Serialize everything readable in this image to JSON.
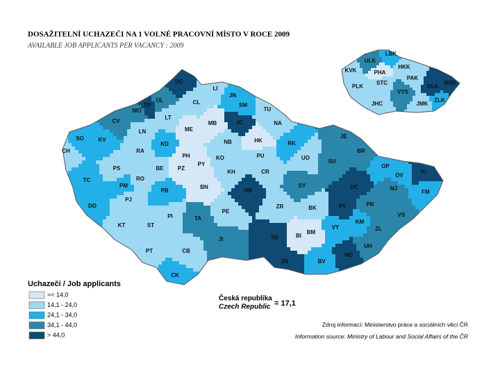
{
  "header": {
    "title": "DOSAŽITELNÍ UCHAZEČI NA 1 VOLNÉ PRACOVNÍ MÍSTO V ROCE 2009",
    "subtitle": "AVAILABLE JOB APPLICANTS PER VACANCY : 2009"
  },
  "legend": {
    "title": "Uchazeči / Job applicants",
    "items": [
      {
        "label": "=< 14,0",
        "color": "#d6e8f8"
      },
      {
        "label": "14,1 - 24,0",
        "color": "#9ed9f3"
      },
      {
        "label": "24,1 - 34,0",
        "color": "#23b0e8"
      },
      {
        "label": "34,1 - 44,0",
        "color": "#2a86ab"
      },
      {
        "label": "> 44,0",
        "color": "#0e4a74"
      }
    ]
  },
  "country": {
    "name_cz": "Česká republika",
    "name_en": "Czech Republic",
    "value_label": "= 17,1"
  },
  "source": {
    "cz": "Zdroj informací: Ministerstvo práce a sociálních věcí ČR",
    "en": "Information source: Ministry of Labour and Social Affairs of the ČR"
  },
  "districts": [
    {
      "label": "DC",
      "class": 4
    },
    {
      "label": "LI",
      "class": 1
    },
    {
      "label": "JN",
      "class": 2
    },
    {
      "label": "CL",
      "class": 1
    },
    {
      "label": "SM",
      "class": 2
    },
    {
      "label": "TU",
      "class": 1
    },
    {
      "label": "UL",
      "class": 3
    },
    {
      "label": "LT",
      "class": 1
    },
    {
      "label": "TP",
      "class": 4
    },
    {
      "label": "MO",
      "class": 3
    },
    {
      "label": "CV",
      "class": 3
    },
    {
      "label": "LN",
      "class": 1
    },
    {
      "label": "MB",
      "class": 0
    },
    {
      "label": "JC",
      "class": 4
    },
    {
      "label": "NA",
      "class": 1
    },
    {
      "label": "ME",
      "class": 0
    },
    {
      "label": "SO",
      "class": 2
    },
    {
      "label": "KV",
      "class": 2
    },
    {
      "label": "CH",
      "class": 1
    },
    {
      "label": "KD",
      "class": 2
    },
    {
      "label": "NB",
      "class": 1
    },
    {
      "label": "HK",
      "class": 0
    },
    {
      "label": "RK",
      "class": 2
    },
    {
      "label": "JE",
      "class": 3
    },
    {
      "label": "RA",
      "class": 1
    },
    {
      "label": "PH",
      "class": 0
    },
    {
      "label": "KO",
      "class": 1
    },
    {
      "label": "PU",
      "class": 1
    },
    {
      "label": "UO",
      "class": 1
    },
    {
      "label": "BR",
      "class": 3
    },
    {
      "label": "PZ",
      "class": 0
    },
    {
      "label": "PY",
      "class": 0
    },
    {
      "label": "BE",
      "class": 1
    },
    {
      "label": "PS",
      "class": 1
    },
    {
      "label": "KH",
      "class": 1
    },
    {
      "label": "CR",
      "class": 1
    },
    {
      "label": "SU",
      "class": 3
    },
    {
      "label": "OP",
      "class": 2
    },
    {
      "label": "OV",
      "class": 2
    },
    {
      "label": "KI",
      "class": 4
    },
    {
      "label": "TC",
      "class": 2
    },
    {
      "label": "PM",
      "class": 2
    },
    {
      "label": "RO",
      "class": 1
    },
    {
      "label": "PJ",
      "class": 1
    },
    {
      "label": "BN",
      "class": 0
    },
    {
      "label": "HB",
      "class": 4
    },
    {
      "label": "SY",
      "class": 3
    },
    {
      "label": "OC",
      "class": 4
    },
    {
      "label": "NJ",
      "class": 3
    },
    {
      "label": "FM",
      "class": 2
    },
    {
      "label": "PB",
      "class": 2
    },
    {
      "label": "DO",
      "class": 2
    },
    {
      "label": "ZR",
      "class": 1
    },
    {
      "label": "BK",
      "class": 1
    },
    {
      "label": "PV",
      "class": 4
    },
    {
      "label": "PR",
      "class": 3
    },
    {
      "label": "PE",
      "class": 1
    },
    {
      "label": "PI",
      "class": 1
    },
    {
      "label": "TA",
      "class": 3
    },
    {
      "label": "VS",
      "class": 3
    },
    {
      "label": "KM",
      "class": 2
    },
    {
      "label": "KT",
      "class": 1
    },
    {
      "label": "ST",
      "class": 1
    },
    {
      "label": "VY",
      "class": 2
    },
    {
      "label": "ZL",
      "class": 3
    },
    {
      "label": "BM",
      "class": 0
    },
    {
      "label": "JI",
      "class": 3
    },
    {
      "label": "TR",
      "class": 4
    },
    {
      "label": "BI",
      "class": 0
    },
    {
      "label": "PT",
      "class": 1
    },
    {
      "label": "CB",
      "class": 1
    },
    {
      "label": "UH",
      "class": 3
    },
    {
      "label": "HO",
      "class": 4
    },
    {
      "label": "ZN",
      "class": 4
    },
    {
      "label": "BV",
      "class": 2
    },
    {
      "label": "CK",
      "class": 2
    }
  ],
  "regions": [
    {
      "label": "LBK",
      "class": 2
    },
    {
      "label": "ULK",
      "class": 3
    },
    {
      "label": "HKK",
      "class": 1
    },
    {
      "label": "KVK",
      "class": 1
    },
    {
      "label": "PHA",
      "class": 0
    },
    {
      "label": "PAK",
      "class": 1
    },
    {
      "label": "MSK",
      "class": 4
    },
    {
      "label": "OLK",
      "class": 4
    },
    {
      "label": "STC",
      "class": 1
    },
    {
      "label": "PLK",
      "class": 1
    },
    {
      "label": "VYS",
      "class": 3
    },
    {
      "label": "ZLK",
      "class": 2
    },
    {
      "label": "JMK",
      "class": 1
    },
    {
      "label": "JHC",
      "class": 1
    }
  ]
}
